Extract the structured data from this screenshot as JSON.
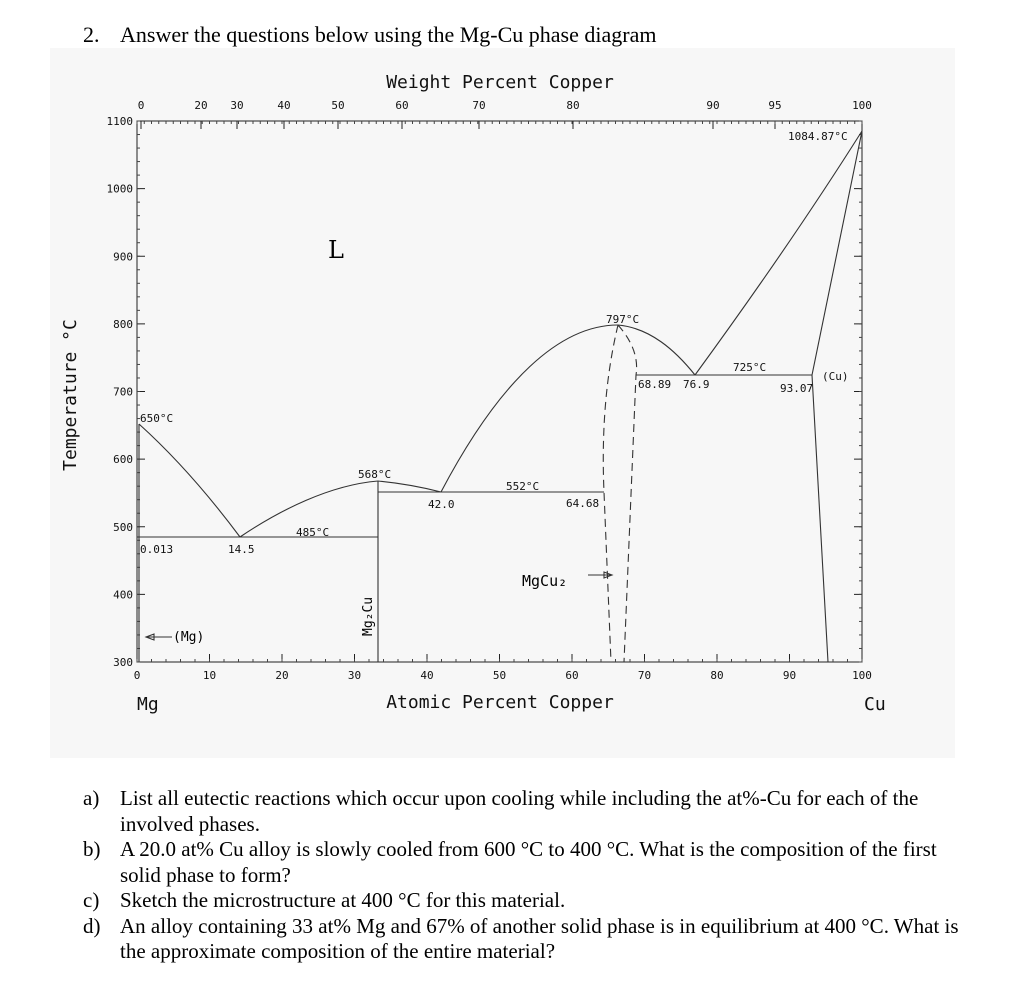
{
  "header": {
    "number": "2.",
    "title": "Answer the questions below using the Mg-Cu phase diagram"
  },
  "diagram": {
    "top_axis_title": "Weight Percent Copper",
    "top_ticks": [
      "0",
      "20",
      "30",
      "40",
      "50",
      "60",
      "70",
      "80",
      "90",
      "95",
      "100"
    ],
    "bottom_axis_title": "Atomic Percent Copper",
    "bottom_ticks": [
      "0",
      "10",
      "20",
      "30",
      "40",
      "50",
      "60",
      "70",
      "80",
      "90",
      "100"
    ],
    "y_axis_title": "Temperature °C",
    "y_ticks": [
      "1100",
      "1000",
      "900",
      "800",
      "700",
      "600",
      "500",
      "400",
      "300"
    ],
    "labels": {
      "liquid": "L",
      "mg_melt": "650°C",
      "mg_solubility": "0.013",
      "eutectic1_comp": "14.5",
      "eutectic1_temp": "485°C",
      "mg2cu_melt": "568°C",
      "eutectic2_comp": "42.0",
      "eutectic2_temp": "552°C",
      "mgcu2_left": "64.68",
      "mgcu2_melt": "797°C",
      "mgcu2_right": "68.89",
      "eutectic3_comp": "76.9",
      "eutectic3_temp": "725°C",
      "cu_solubility": "93.07",
      "cu_phase": "(Cu)",
      "cu_melt": "1084.87°C",
      "mgcu2": "MgCu₂",
      "mg2cu": "Mg₂Cu",
      "mg_phase": "(Mg)",
      "left_element": "Mg",
      "right_element": "Cu"
    }
  },
  "questions": [
    {
      "letter": "a)",
      "text": "List all eutectic reactions which occur upon cooling while including the at%-Cu for each of the involved phases."
    },
    {
      "letter": "b)",
      "text": "A 20.0 at% Cu alloy is slowly cooled from 600 °C to 400 °C. What is the composition of the first solid phase to form?"
    },
    {
      "letter": "c)",
      "text": "Sketch the microstructure at 400 °C for this material."
    },
    {
      "letter": "d)",
      "text": "An alloy containing 33 at% Mg and 67% of another solid phase is in equilibrium at 400 °C. What is the approximate composition of the entire material?"
    }
  ]
}
